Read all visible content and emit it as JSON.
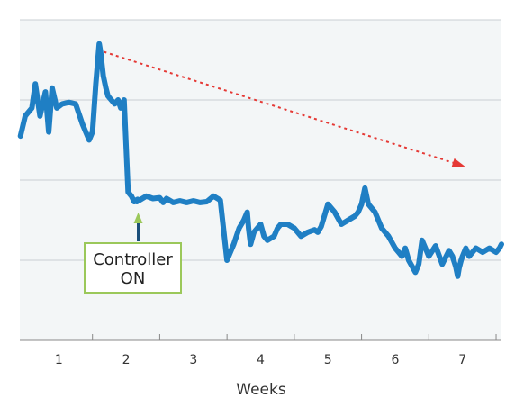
{
  "chart_data": {
    "type": "line",
    "title": "",
    "xlabel": "Weeks",
    "ylabel": "",
    "x_ticks": [
      "1",
      "2",
      "3",
      "4",
      "5",
      "6",
      "7"
    ],
    "xlim": [
      0.42,
      7.58
    ],
    "ylim": [
      0,
      4
    ],
    "grid": "horizontal",
    "y_tick_labels_shown": false,
    "series": [
      {
        "color": "#1f7fc4",
        "x": [
          0.43,
          0.5,
          0.6,
          0.65,
          0.72,
          0.8,
          0.85,
          0.9,
          0.97,
          1.05,
          1.15,
          1.25,
          1.35,
          1.45,
          1.5,
          1.55,
          1.6,
          1.62,
          1.66,
          1.7,
          1.73,
          1.78,
          1.83,
          1.88,
          1.92,
          1.97,
          2.03,
          2.08,
          2.12,
          2.14,
          2.16,
          2.17,
          2.2,
          2.3,
          2.4,
          2.5,
          2.55,
          2.6,
          2.7,
          2.8,
          2.9,
          3.0,
          3.1,
          3.2,
          3.3,
          3.4,
          3.5,
          3.6,
          3.68,
          3.75,
          3.8,
          3.82,
          3.85,
          3.9,
          4.0,
          4.05,
          4.1,
          4.2,
          4.25,
          4.3,
          4.4,
          4.5,
          4.6,
          4.7,
          4.8,
          4.85,
          4.9,
          5.0,
          5.1,
          5.2,
          5.3,
          5.4,
          5.45,
          5.5,
          5.55,
          5.6,
          5.7,
          5.8,
          5.9,
          6.0,
          6.05,
          6.1,
          6.15,
          6.2,
          6.3,
          6.35,
          6.4,
          6.5,
          6.6,
          6.7,
          6.8,
          6.85,
          6.9,
          6.93,
          6.95,
          6.98,
          7.0,
          7.05,
          7.1,
          7.2,
          7.3,
          7.4,
          7.5,
          7.55,
          7.58
        ],
        "values": [
          2.55,
          2.8,
          2.9,
          3.2,
          2.8,
          3.1,
          2.6,
          3.15,
          2.9,
          2.95,
          2.97,
          2.95,
          2.7,
          2.5,
          2.6,
          3.2,
          3.7,
          3.6,
          3.3,
          3.15,
          3.05,
          3.0,
          2.95,
          3.0,
          2.9,
          3.0,
          1.85,
          1.8,
          1.73,
          1.75,
          1.73,
          1.76,
          1.75,
          1.8,
          1.77,
          1.78,
          1.72,
          1.77,
          1.72,
          1.74,
          1.72,
          1.74,
          1.72,
          1.73,
          1.8,
          1.75,
          1.0,
          1.2,
          1.4,
          1.5,
          1.6,
          1.4,
          1.2,
          1.35,
          1.45,
          1.3,
          1.25,
          1.3,
          1.4,
          1.45,
          1.45,
          1.4,
          1.3,
          1.35,
          1.38,
          1.35,
          1.42,
          1.7,
          1.6,
          1.45,
          1.5,
          1.55,
          1.6,
          1.7,
          1.9,
          1.7,
          1.6,
          1.4,
          1.3,
          1.15,
          1.1,
          1.05,
          1.15,
          1.0,
          0.85,
          0.95,
          1.25,
          1.05,
          1.18,
          0.95,
          1.12,
          1.05,
          0.92,
          0.8,
          0.9,
          1.0,
          1.05,
          1.15,
          1.05,
          1.15,
          1.1,
          1.15,
          1.1,
          1.15,
          1.2
        ]
      }
    ],
    "annotations": [
      {
        "type": "trend-arrow",
        "color": "#e53935",
        "x_start": 1.67,
        "y_start": 3.6,
        "x_end": 7.0,
        "y_end": 2.18
      },
      {
        "type": "callout",
        "text_lines": [
          "Controller",
          "ON"
        ],
        "x": 2.18,
        "border_color": "#9bc85a",
        "arrow_color": "#9bc85a"
      }
    ]
  }
}
